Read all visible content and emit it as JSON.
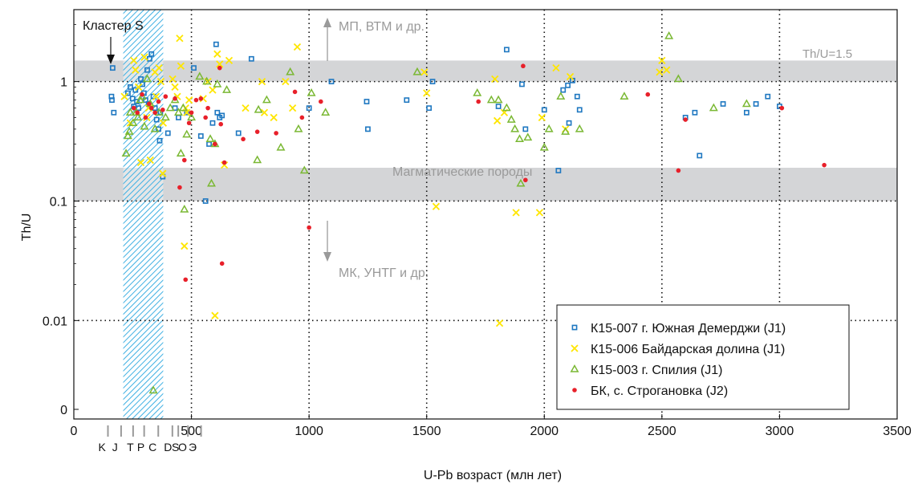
{
  "chart_data": {
    "type": "scatter",
    "xlabel": "U-Pb возраст (млн лет)",
    "ylabel": "Th/U",
    "xlim": [
      0,
      3500
    ],
    "y_scale": "log",
    "ylim": [
      0.0015,
      4
    ],
    "x_ticks": [
      0,
      500,
      1000,
      1500,
      2000,
      2500,
      3000,
      3500
    ],
    "y_ticks": [
      {
        "value": 0.001,
        "label": "0"
      },
      {
        "value": 0.01,
        "label": "0.01"
      },
      {
        "value": 0.1,
        "label": "0.1"
      },
      {
        "value": 1,
        "label": "1"
      }
    ],
    "grid": "dotted",
    "legend_position": "bottom-right",
    "bands": [
      {
        "y_from": 1.0,
        "y_to": 1.5,
        "color": "#d4d5d7"
      },
      {
        "y_from": 0.1,
        "y_to": 0.19,
        "color": "#d4d5d7"
      }
    ],
    "cluster_band": {
      "x_from": 210,
      "x_to": 380,
      "color": "#3fb0e3"
    },
    "annotations": {
      "cluster_label": "Кластер S",
      "thu_label": "Th/U=1.5",
      "magmatic_label": "Магматические породы",
      "up_label": "МП, ВТМ и др.",
      "down_label": "МК, УНТГ и др."
    },
    "period_labels": [
      "K",
      "J",
      "T",
      "P",
      "C",
      "D",
      "S",
      "O",
      "Э"
    ],
    "period_label_x": [
      120,
      175,
      240,
      285,
      335,
      400,
      432,
      462,
      505
    ],
    "period_ticks": [
      145,
      201,
      252,
      299,
      359,
      419,
      444,
      485,
      541
    ],
    "series": [
      {
        "name": "К15-007 г. Южная Демерджи (J1)",
        "marker": "square",
        "color": "#1f78c1",
        "points": [
          [
            165,
            1.3
          ],
          [
            160,
            0.75
          ],
          [
            162,
            0.7
          ],
          [
            170,
            0.55
          ],
          [
            230,
            0.8
          ],
          [
            240,
            0.9
          ],
          [
            250,
            0.72
          ],
          [
            255,
            0.62
          ],
          [
            262,
            0.85
          ],
          [
            268,
            0.68
          ],
          [
            275,
            0.6
          ],
          [
            285,
            1.05
          ],
          [
            292,
            0.95
          ],
          [
            298,
            0.8
          ],
          [
            305,
            0.7
          ],
          [
            312,
            1.25
          ],
          [
            318,
            0.65
          ],
          [
            322,
            1.55
          ],
          [
            330,
            1.7
          ],
          [
            338,
            0.75
          ],
          [
            345,
            0.6
          ],
          [
            352,
            0.48
          ],
          [
            360,
            0.4
          ],
          [
            365,
            0.32
          ],
          [
            368,
            0.55
          ],
          [
            378,
            0.16
          ],
          [
            400,
            0.37
          ],
          [
            430,
            0.6
          ],
          [
            445,
            0.5
          ],
          [
            480,
            0.55
          ],
          [
            510,
            1.3
          ],
          [
            540,
            0.35
          ],
          [
            560,
            0.1
          ],
          [
            575,
            0.3
          ],
          [
            590,
            0.45
          ],
          [
            605,
            2.05
          ],
          [
            610,
            0.55
          ],
          [
            620,
            0.5
          ],
          [
            630,
            0.52
          ],
          [
            700,
            0.37
          ],
          [
            755,
            1.55
          ],
          [
            1000,
            0.6
          ],
          [
            1095,
            1.0
          ],
          [
            1250,
            0.4
          ],
          [
            1245,
            0.68
          ],
          [
            1415,
            0.7
          ],
          [
            1510,
            0.6
          ],
          [
            1525,
            1.0
          ],
          [
            1805,
            0.62
          ],
          [
            1840,
            1.85
          ],
          [
            1905,
            0.95
          ],
          [
            1920,
            0.4
          ],
          [
            2000,
            0.58
          ],
          [
            2060,
            0.18
          ],
          [
            2080,
            0.85
          ],
          [
            2100,
            0.93
          ],
          [
            2105,
            0.45
          ],
          [
            2120,
            1.02
          ],
          [
            2140,
            0.75
          ],
          [
            2150,
            0.58
          ],
          [
            2600,
            0.5
          ],
          [
            2640,
            0.55
          ],
          [
            2660,
            0.24
          ],
          [
            2760,
            0.65
          ],
          [
            2860,
            0.55
          ],
          [
            2900,
            0.65
          ],
          [
            2950,
            0.75
          ],
          [
            3000,
            0.62
          ]
        ]
      },
      {
        "name": "К15-006 Байдарская долина (J1)",
        "marker": "x",
        "color": "#ffe600",
        "points": [
          [
            215,
            0.75
          ],
          [
            240,
            0.45
          ],
          [
            255,
            1.5
          ],
          [
            262,
            1.25
          ],
          [
            275,
            0.9
          ],
          [
            285,
            0.21
          ],
          [
            300,
            1.6
          ],
          [
            310,
            0.5
          ],
          [
            318,
            0.6
          ],
          [
            325,
            0.22
          ],
          [
            345,
            1.2
          ],
          [
            350,
            0.75
          ],
          [
            362,
            1.3
          ],
          [
            370,
            1.0
          ],
          [
            378,
            0.17
          ],
          [
            380,
            0.45
          ],
          [
            420,
            1.05
          ],
          [
            430,
            0.9
          ],
          [
            440,
            0.75
          ],
          [
            450,
            2.3
          ],
          [
            455,
            1.35
          ],
          [
            470,
            0.042
          ],
          [
            475,
            0.6
          ],
          [
            480,
            0.55
          ],
          [
            490,
            0.7
          ],
          [
            550,
            0.72
          ],
          [
            570,
            1.0
          ],
          [
            590,
            0.85
          ],
          [
            600,
            0.011
          ],
          [
            610,
            1.7
          ],
          [
            620,
            1.4
          ],
          [
            640,
            0.2
          ],
          [
            660,
            1.5
          ],
          [
            730,
            0.6
          ],
          [
            800,
            1.0
          ],
          [
            810,
            0.55
          ],
          [
            850,
            0.5
          ],
          [
            900,
            1.0
          ],
          [
            930,
            0.6
          ],
          [
            950,
            1.95
          ],
          [
            1490,
            1.2
          ],
          [
            1500,
            0.8
          ],
          [
            1540,
            0.09
          ],
          [
            1790,
            1.05
          ],
          [
            1800,
            0.47
          ],
          [
            1810,
            0.0095
          ],
          [
            1830,
            0.55
          ],
          [
            1880,
            0.08
          ],
          [
            1980,
            0.08
          ],
          [
            1990,
            0.5
          ],
          [
            2050,
            1.3
          ],
          [
            2090,
            0.4
          ],
          [
            2110,
            1.1
          ],
          [
            2490,
            1.2
          ],
          [
            2500,
            1.5
          ],
          [
            2520,
            1.25
          ]
        ]
      },
      {
        "name": "К15-003 г. Спилия (J1)",
        "marker": "triangle",
        "color": "#7ab833",
        "points": [
          [
            222,
            0.25
          ],
          [
            230,
            0.35
          ],
          [
            236,
            0.38
          ],
          [
            240,
            0.55
          ],
          [
            252,
            0.45
          ],
          [
            265,
            0.55
          ],
          [
            272,
            0.5
          ],
          [
            282,
            0.7
          ],
          [
            290,
            0.75
          ],
          [
            300,
            0.42
          ],
          [
            312,
            1.05
          ],
          [
            325,
            0.65
          ],
          [
            338,
            0.0026
          ],
          [
            345,
            0.4
          ],
          [
            362,
            0.55
          ],
          [
            390,
            0.5
          ],
          [
            410,
            0.6
          ],
          [
            430,
            0.7
          ],
          [
            445,
            0.55
          ],
          [
            455,
            0.25
          ],
          [
            465,
            0.6
          ],
          [
            470,
            0.085
          ],
          [
            480,
            0.36
          ],
          [
            500,
            0.5
          ],
          [
            535,
            1.1
          ],
          [
            565,
            1.0
          ],
          [
            580,
            0.33
          ],
          [
            585,
            0.14
          ],
          [
            600,
            0.3
          ],
          [
            610,
            0.95
          ],
          [
            650,
            0.85
          ],
          [
            780,
            0.22
          ],
          [
            785,
            0.58
          ],
          [
            820,
            0.7
          ],
          [
            880,
            0.28
          ],
          [
            920,
            1.2
          ],
          [
            955,
            0.4
          ],
          [
            980,
            0.18
          ],
          [
            1010,
            0.8
          ],
          [
            1070,
            0.55
          ],
          [
            1460,
            1.2
          ],
          [
            1715,
            0.8
          ],
          [
            1775,
            0.7
          ],
          [
            1805,
            0.7
          ],
          [
            1840,
            0.6
          ],
          [
            1860,
            0.48
          ],
          [
            1875,
            0.4
          ],
          [
            1895,
            0.33
          ],
          [
            1900,
            0.14
          ],
          [
            1930,
            0.34
          ],
          [
            2000,
            0.28
          ],
          [
            2020,
            0.4
          ],
          [
            2070,
            0.75
          ],
          [
            2090,
            0.38
          ],
          [
            2150,
            0.4
          ],
          [
            2340,
            0.75
          ],
          [
            2530,
            2.4
          ],
          [
            2570,
            1.05
          ],
          [
            2720,
            0.6
          ],
          [
            2860,
            0.65
          ]
        ]
      },
      {
        "name": "БК, с. Строгановка (J2)",
        "marker": "circle",
        "color": "#e8202a",
        "points": [
          [
            255,
            0.6
          ],
          [
            270,
            0.55
          ],
          [
            290,
            0.78
          ],
          [
            305,
            0.5
          ],
          [
            320,
            0.65
          ],
          [
            330,
            0.6
          ],
          [
            345,
            0.55
          ],
          [
            360,
            0.68
          ],
          [
            378,
            0.58
          ],
          [
            390,
            0.75
          ],
          [
            430,
            0.72
          ],
          [
            450,
            0.13
          ],
          [
            470,
            0.22
          ],
          [
            475,
            0.022
          ],
          [
            490,
            0.45
          ],
          [
            500,
            0.55
          ],
          [
            520,
            0.7
          ],
          [
            540,
            0.72
          ],
          [
            560,
            0.5
          ],
          [
            570,
            0.6
          ],
          [
            600,
            0.3
          ],
          [
            620,
            1.3
          ],
          [
            625,
            0.44
          ],
          [
            630,
            0.03
          ],
          [
            640,
            0.21
          ],
          [
            720,
            0.33
          ],
          [
            780,
            0.38
          ],
          [
            860,
            0.37
          ],
          [
            940,
            0.82
          ],
          [
            970,
            0.5
          ],
          [
            1000,
            0.06
          ],
          [
            1050,
            0.68
          ],
          [
            1720,
            0.68
          ],
          [
            1910,
            1.35
          ],
          [
            1920,
            0.15
          ],
          [
            2440,
            0.78
          ],
          [
            2570,
            0.18
          ],
          [
            2600,
            0.48
          ],
          [
            3010,
            0.6
          ],
          [
            3190,
            0.2
          ]
        ]
      }
    ]
  }
}
